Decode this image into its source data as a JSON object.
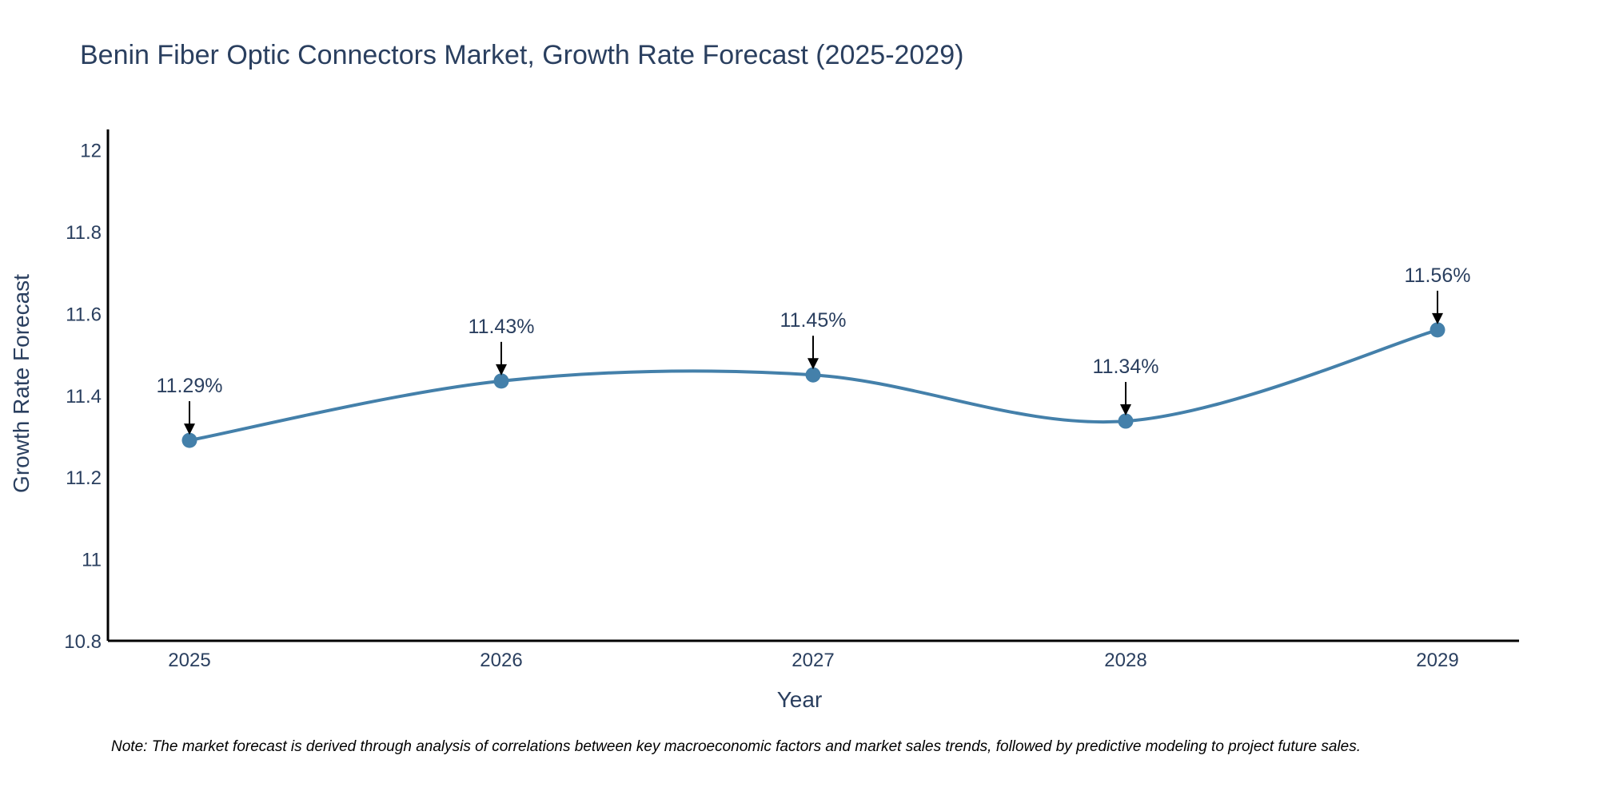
{
  "chart_data": {
    "type": "line",
    "title": "Benin Fiber Optic Connectors Market, Growth Rate Forecast (2025-2029)",
    "xlabel": "Year",
    "ylabel": "Growth Rate Forecast",
    "categories": [
      "2025",
      "2026",
      "2027",
      "2028",
      "2029"
    ],
    "values": [
      11.29,
      11.435,
      11.45,
      11.337,
      11.56
    ],
    "data_labels": [
      "11.29%",
      "11.43%",
      "11.45%",
      "11.34%",
      "11.56%"
    ],
    "ylim": [
      10.8,
      12.05
    ],
    "yticks": [
      10.8,
      11,
      11.2,
      11.4,
      11.6,
      11.8,
      12
    ],
    "ytick_labels": [
      "10.8",
      "11",
      "11.2",
      "11.4",
      "11.6",
      "11.8",
      "12"
    ],
    "line_shape": "spline",
    "grid": false,
    "legend": "none",
    "colors": {
      "line": "#4480aa",
      "marker": "#4480aa",
      "axis": "#000000",
      "arrow": "#000000"
    },
    "note": "Note: The market forecast is derived through analysis of correlations between key macroeconomic factors and market sales trends, followed by predictive modeling to project future sales."
  }
}
